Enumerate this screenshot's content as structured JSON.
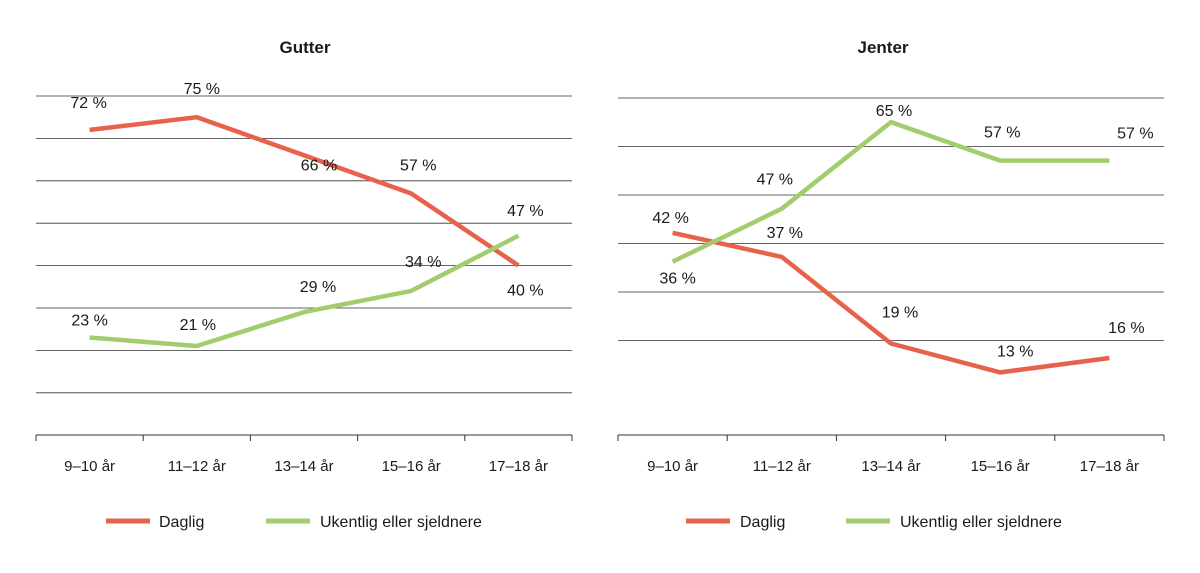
{
  "chart_data": [
    {
      "type": "line",
      "title": "Gutter",
      "categories": [
        "9–10 år",
        "11–12 år",
        "13–14 år",
        "15–16 år",
        "17–18 år"
      ],
      "ylim": [
        0,
        80
      ],
      "grid": true,
      "legend": "bottom",
      "series": [
        {
          "name": "Daglig",
          "values": [
            72,
            75,
            66,
            57,
            40
          ],
          "labels": [
            "72 %",
            "75 %",
            "66 %",
            "57 %",
            "40 %"
          ],
          "color": "#e8614a"
        },
        {
          "name": "Ukentlig eller sjeldnere",
          "values": [
            23,
            21,
            29,
            34,
            47
          ],
          "labels": [
            "23 %",
            "21 %",
            "29 %",
            "34 %",
            "47 %"
          ],
          "color": "#a3cc6e"
        }
      ]
    },
    {
      "type": "line",
      "title": "Jenter",
      "categories": [
        "9–10 år",
        "11–12 år",
        "13–14 år",
        "15–16 år",
        "17–18 år"
      ],
      "ylim": [
        0,
        70
      ],
      "grid": true,
      "legend": "bottom",
      "series": [
        {
          "name": "Daglig",
          "values": [
            42,
            37,
            19,
            13,
            16
          ],
          "labels": [
            "42 %",
            "37 %",
            "19 %",
            "13 %",
            "16 %"
          ],
          "color": "#e8614a"
        },
        {
          "name": "Ukentlig eller sjeldnere",
          "values": [
            36,
            47,
            65,
            57,
            57
          ],
          "labels": [
            "36 %",
            "47 %",
            "65 %",
            "57 %",
            "57 %"
          ],
          "color": "#a3cc6e"
        }
      ]
    }
  ]
}
